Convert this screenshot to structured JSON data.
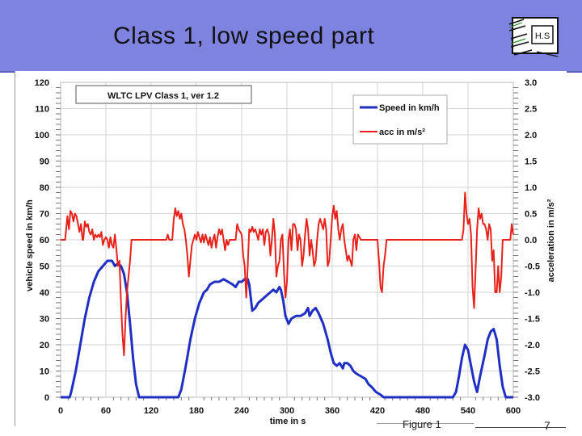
{
  "slide": {
    "title": "Class 1, low speed part",
    "logo_text": "H.S",
    "figure_label": "Figure 1",
    "page_number": "7"
  },
  "chart_data": {
    "type": "line",
    "inset_label": "WLTC LPV Class 1, ver 1.2",
    "xlabel": "time in s",
    "ylabel_left": "vehicle speed in km/h",
    "ylabel_right": "acceleration in m/s²",
    "xlim": [
      0,
      600
    ],
    "ylim_left": [
      0,
      120
    ],
    "ylim_right": [
      -3.0,
      3.0
    ],
    "x_ticks": [
      "0",
      "60",
      "120",
      "180",
      "240",
      "300",
      "360",
      "420",
      "480",
      "540",
      "600"
    ],
    "y_left_ticks": [
      "0",
      "10",
      "20",
      "30",
      "40",
      "50",
      "60",
      "70",
      "80",
      "90",
      "100",
      "110",
      "120"
    ],
    "y_right_ticks": [
      "-3.0",
      "-2.5",
      "-2.0",
      "-1.5",
      "-1.0",
      "-0.5",
      "0.0",
      "0.5",
      "1.0",
      "1.5",
      "2.0",
      "2.5",
      "3.0"
    ],
    "grid": true,
    "legend_position": "top-right",
    "colors": {
      "speed": "#1f2fc4",
      "acc": "#e8211b",
      "grid": "#d4d4d4"
    },
    "series": [
      {
        "name": "Speed in km/h",
        "axis": "left",
        "points": [
          [
            0,
            0
          ],
          [
            12,
            0
          ],
          [
            14,
            2
          ],
          [
            20,
            10
          ],
          [
            26,
            20
          ],
          [
            32,
            30
          ],
          [
            38,
            38
          ],
          [
            44,
            44
          ],
          [
            50,
            48
          ],
          [
            56,
            50
          ],
          [
            62,
            52
          ],
          [
            68,
            52
          ],
          [
            72,
            50
          ],
          [
            76,
            51
          ],
          [
            80,
            50
          ],
          [
            84,
            47
          ],
          [
            88,
            40
          ],
          [
            92,
            28
          ],
          [
            96,
            15
          ],
          [
            100,
            5
          ],
          [
            104,
            0
          ],
          [
            150,
            0
          ],
          [
            156,
            0
          ],
          [
            160,
            3
          ],
          [
            166,
            12
          ],
          [
            172,
            22
          ],
          [
            178,
            30
          ],
          [
            184,
            36
          ],
          [
            190,
            40
          ],
          [
            194,
            41
          ],
          [
            198,
            43
          ],
          [
            204,
            44
          ],
          [
            210,
            44
          ],
          [
            216,
            45
          ],
          [
            222,
            44
          ],
          [
            228,
            43
          ],
          [
            232,
            42
          ],
          [
            236,
            44
          ],
          [
            240,
            44
          ],
          [
            244,
            45
          ],
          [
            248,
            45
          ],
          [
            250,
            43
          ],
          [
            252,
            38
          ],
          [
            254,
            33
          ],
          [
            258,
            34
          ],
          [
            262,
            36
          ],
          [
            266,
            37
          ],
          [
            270,
            38
          ],
          [
            274,
            39
          ],
          [
            278,
            40
          ],
          [
            282,
            41
          ],
          [
            286,
            40
          ],
          [
            290,
            42
          ],
          [
            292,
            41
          ],
          [
            295,
            37
          ],
          [
            298,
            31
          ],
          [
            302,
            28
          ],
          [
            306,
            30
          ],
          [
            312,
            31
          ],
          [
            318,
            31
          ],
          [
            324,
            32
          ],
          [
            328,
            34
          ],
          [
            330,
            31
          ],
          [
            334,
            33
          ],
          [
            338,
            34
          ],
          [
            342,
            32
          ],
          [
            348,
            28
          ],
          [
            354,
            22
          ],
          [
            358,
            17
          ],
          [
            362,
            13
          ],
          [
            366,
            12
          ],
          [
            370,
            13
          ],
          [
            372,
            12
          ],
          [
            374,
            11
          ],
          [
            376,
            13
          ],
          [
            380,
            13
          ],
          [
            384,
            12
          ],
          [
            388,
            10
          ],
          [
            392,
            9
          ],
          [
            398,
            8
          ],
          [
            404,
            7
          ],
          [
            408,
            5
          ],
          [
            412,
            4
          ],
          [
            418,
            2
          ],
          [
            424,
            1
          ],
          [
            428,
            0
          ],
          [
            520,
            0
          ],
          [
            524,
            2
          ],
          [
            528,
            8
          ],
          [
            532,
            15
          ],
          [
            536,
            20
          ],
          [
            540,
            18
          ],
          [
            544,
            12
          ],
          [
            548,
            6
          ],
          [
            552,
            2
          ],
          [
            556,
            8
          ],
          [
            562,
            16
          ],
          [
            566,
            22
          ],
          [
            570,
            25
          ],
          [
            574,
            26
          ],
          [
            578,
            22
          ],
          [
            582,
            12
          ],
          [
            586,
            4
          ],
          [
            590,
            0
          ],
          [
            600,
            0
          ]
        ]
      },
      {
        "name": "acc in m/s²",
        "axis": "right",
        "points": [
          [
            0,
            0.0
          ],
          [
            6,
            0.0
          ],
          [
            9,
            0.45
          ],
          [
            11,
            0.2
          ],
          [
            13,
            0.55
          ],
          [
            15,
            0.5
          ],
          [
            17,
            0.35
          ],
          [
            19,
            0.5
          ],
          [
            21,
            0.45
          ],
          [
            23,
            0.3
          ],
          [
            25,
            0.15
          ],
          [
            27,
            0.3
          ],
          [
            29,
            0.0
          ],
          [
            30,
            0.0
          ],
          [
            32,
            0.35
          ],
          [
            34,
            0.25
          ],
          [
            36,
            0.3
          ],
          [
            38,
            0.15
          ],
          [
            40,
            0.1
          ],
          [
            42,
            0.2
          ],
          [
            44,
            0.0
          ],
          [
            46,
            0.1
          ],
          [
            48,
            0.05
          ],
          [
            50,
            0.1
          ],
          [
            52,
            0.05
          ],
          [
            54,
            0.15
          ],
          [
            56,
            -0.1
          ],
          [
            58,
            0.0
          ],
          [
            60,
            0.05
          ],
          [
            62,
            0.0
          ],
          [
            64,
            -0.15
          ],
          [
            66,
            0.05
          ],
          [
            68,
            -0.1
          ],
          [
            70,
            -0.15
          ],
          [
            72,
            0.1
          ],
          [
            74,
            -0.2
          ],
          [
            76,
            -0.5
          ],
          [
            78,
            -0.4
          ],
          [
            80,
            -1.2
          ],
          [
            82,
            -1.8
          ],
          [
            84,
            -2.2
          ],
          [
            86,
            -1.5
          ],
          [
            88,
            -1.0
          ],
          [
            92,
            -0.4
          ],
          [
            94,
            0.0
          ],
          [
            140,
            0.0
          ],
          [
            142,
            0.1
          ],
          [
            144,
            0.0
          ],
          [
            148,
            0.0
          ],
          [
            150,
            0.4
          ],
          [
            152,
            0.6
          ],
          [
            154,
            0.45
          ],
          [
            156,
            0.55
          ],
          [
            158,
            0.4
          ],
          [
            160,
            0.5
          ],
          [
            162,
            0.3
          ],
          [
            164,
            0.2
          ],
          [
            166,
            0.0
          ],
          [
            168,
            -0.3
          ],
          [
            170,
            -0.7
          ],
          [
            172,
            -0.4
          ],
          [
            174,
            -0.1
          ],
          [
            176,
            0.0
          ],
          [
            178,
            0.1
          ],
          [
            180,
            0.0
          ],
          [
            182,
            0.15
          ],
          [
            184,
            0.05
          ],
          [
            186,
            -0.05
          ],
          [
            188,
            0.1
          ],
          [
            190,
            -0.05
          ],
          [
            192,
            0.1
          ],
          [
            194,
            0.0
          ],
          [
            196,
            -0.1
          ],
          [
            198,
            0.05
          ],
          [
            200,
            -0.15
          ],
          [
            202,
            0.0
          ],
          [
            204,
            0.1
          ],
          [
            206,
            -0.15
          ],
          [
            208,
            0.05
          ],
          [
            210,
            0.2
          ],
          [
            212,
            0.1
          ],
          [
            214,
            0.2
          ],
          [
            216,
            0.0
          ],
          [
            218,
            -0.2
          ],
          [
            220,
            0.0
          ],
          [
            222,
            -0.1
          ],
          [
            224,
            0.0
          ],
          [
            226,
            0.0
          ],
          [
            232,
            0.0
          ],
          [
            234,
            0.3
          ],
          [
            236,
            0.2
          ],
          [
            240,
            0.1
          ],
          [
            242,
            -0.3
          ],
          [
            244,
            -0.5
          ],
          [
            246,
            -1.1
          ],
          [
            248,
            -0.5
          ],
          [
            250,
            0.2
          ],
          [
            252,
            0.15
          ],
          [
            254,
            0.25
          ],
          [
            256,
            0.15
          ],
          [
            258,
            0.2
          ],
          [
            260,
            0.1
          ],
          [
            262,
            0.0
          ],
          [
            264,
            0.2
          ],
          [
            266,
            0.1
          ],
          [
            268,
            0.2
          ],
          [
            270,
            -0.1
          ],
          [
            272,
            0.15
          ],
          [
            274,
            0.2
          ],
          [
            276,
            0.1
          ],
          [
            278,
            -0.3
          ],
          [
            280,
            0.0
          ],
          [
            282,
            0.4
          ],
          [
            284,
            0.1
          ],
          [
            286,
            -0.7
          ],
          [
            288,
            -0.5
          ],
          [
            290,
            -0.4
          ],
          [
            292,
            0.0
          ],
          [
            294,
            0.1
          ],
          [
            296,
            -0.6
          ],
          [
            298,
            -1.1
          ],
          [
            300,
            -0.8
          ],
          [
            302,
            0.0
          ],
          [
            304,
            0.2
          ],
          [
            306,
            -0.2
          ],
          [
            308,
            0.3
          ],
          [
            310,
            0.3
          ],
          [
            312,
            0.2
          ],
          [
            314,
            -0.2
          ],
          [
            316,
            0.1
          ],
          [
            318,
            0.0
          ],
          [
            320,
            -0.5
          ],
          [
            322,
            -0.3
          ],
          [
            324,
            0.1
          ],
          [
            326,
            0.4
          ],
          [
            328,
            0.2
          ],
          [
            330,
            -0.3
          ],
          [
            332,
            0.0
          ],
          [
            334,
            -0.2
          ],
          [
            336,
            -0.5
          ],
          [
            338,
            -0.4
          ],
          [
            340,
            0.0
          ],
          [
            342,
            0.3
          ],
          [
            344,
            0.4
          ],
          [
            346,
            0.3
          ],
          [
            348,
            0.2
          ],
          [
            350,
            0.4
          ],
          [
            352,
            0.2
          ],
          [
            354,
            -0.5
          ],
          [
            356,
            -0.4
          ],
          [
            358,
            0.0
          ],
          [
            360,
            0.45
          ],
          [
            362,
            0.65
          ],
          [
            364,
            0.4
          ],
          [
            366,
            0.55
          ],
          [
            368,
            0.2
          ],
          [
            370,
            0.0
          ],
          [
            372,
            0.2
          ],
          [
            374,
            0.3
          ],
          [
            376,
            0.0
          ],
          [
            378,
            -0.2
          ],
          [
            380,
            -0.4
          ],
          [
            382,
            -0.3
          ],
          [
            384,
            -0.4
          ],
          [
            386,
            -0.5
          ],
          [
            388,
            0.0
          ],
          [
            390,
            0.1
          ],
          [
            392,
            -0.2
          ],
          [
            394,
            0.1
          ],
          [
            398,
            0.0
          ],
          [
            420,
            0.0
          ],
          [
            422,
            -0.4
          ],
          [
            424,
            -0.9
          ],
          [
            426,
            -1.0
          ],
          [
            428,
            -0.5
          ],
          [
            430,
            -0.3
          ],
          [
            432,
            0.0
          ],
          [
            532,
            0.0
          ],
          [
            534,
            0.2
          ],
          [
            536,
            0.9
          ],
          [
            538,
            0.5
          ],
          [
            540,
            0.3
          ],
          [
            542,
            0.4
          ],
          [
            544,
            0.1
          ],
          [
            546,
            -0.9
          ],
          [
            548,
            -1.3
          ],
          [
            550,
            -0.6
          ],
          [
            552,
            0.2
          ],
          [
            554,
            0.6
          ],
          [
            556,
            0.4
          ],
          [
            558,
            0.5
          ],
          [
            560,
            0.3
          ],
          [
            562,
            0.3
          ],
          [
            564,
            0.2
          ],
          [
            566,
            0.0
          ],
          [
            568,
            0.3
          ],
          [
            570,
            0.2
          ],
          [
            572,
            -0.4
          ],
          [
            574,
            -0.2
          ],
          [
            576,
            -1.0
          ],
          [
            578,
            -1.0
          ],
          [
            580,
            -0.5
          ],
          [
            582,
            -1.0
          ],
          [
            584,
            -0.7
          ],
          [
            586,
            0.0
          ],
          [
            596,
            0.0
          ],
          [
            598,
            0.3
          ],
          [
            600,
            0.1
          ]
        ]
      }
    ]
  }
}
